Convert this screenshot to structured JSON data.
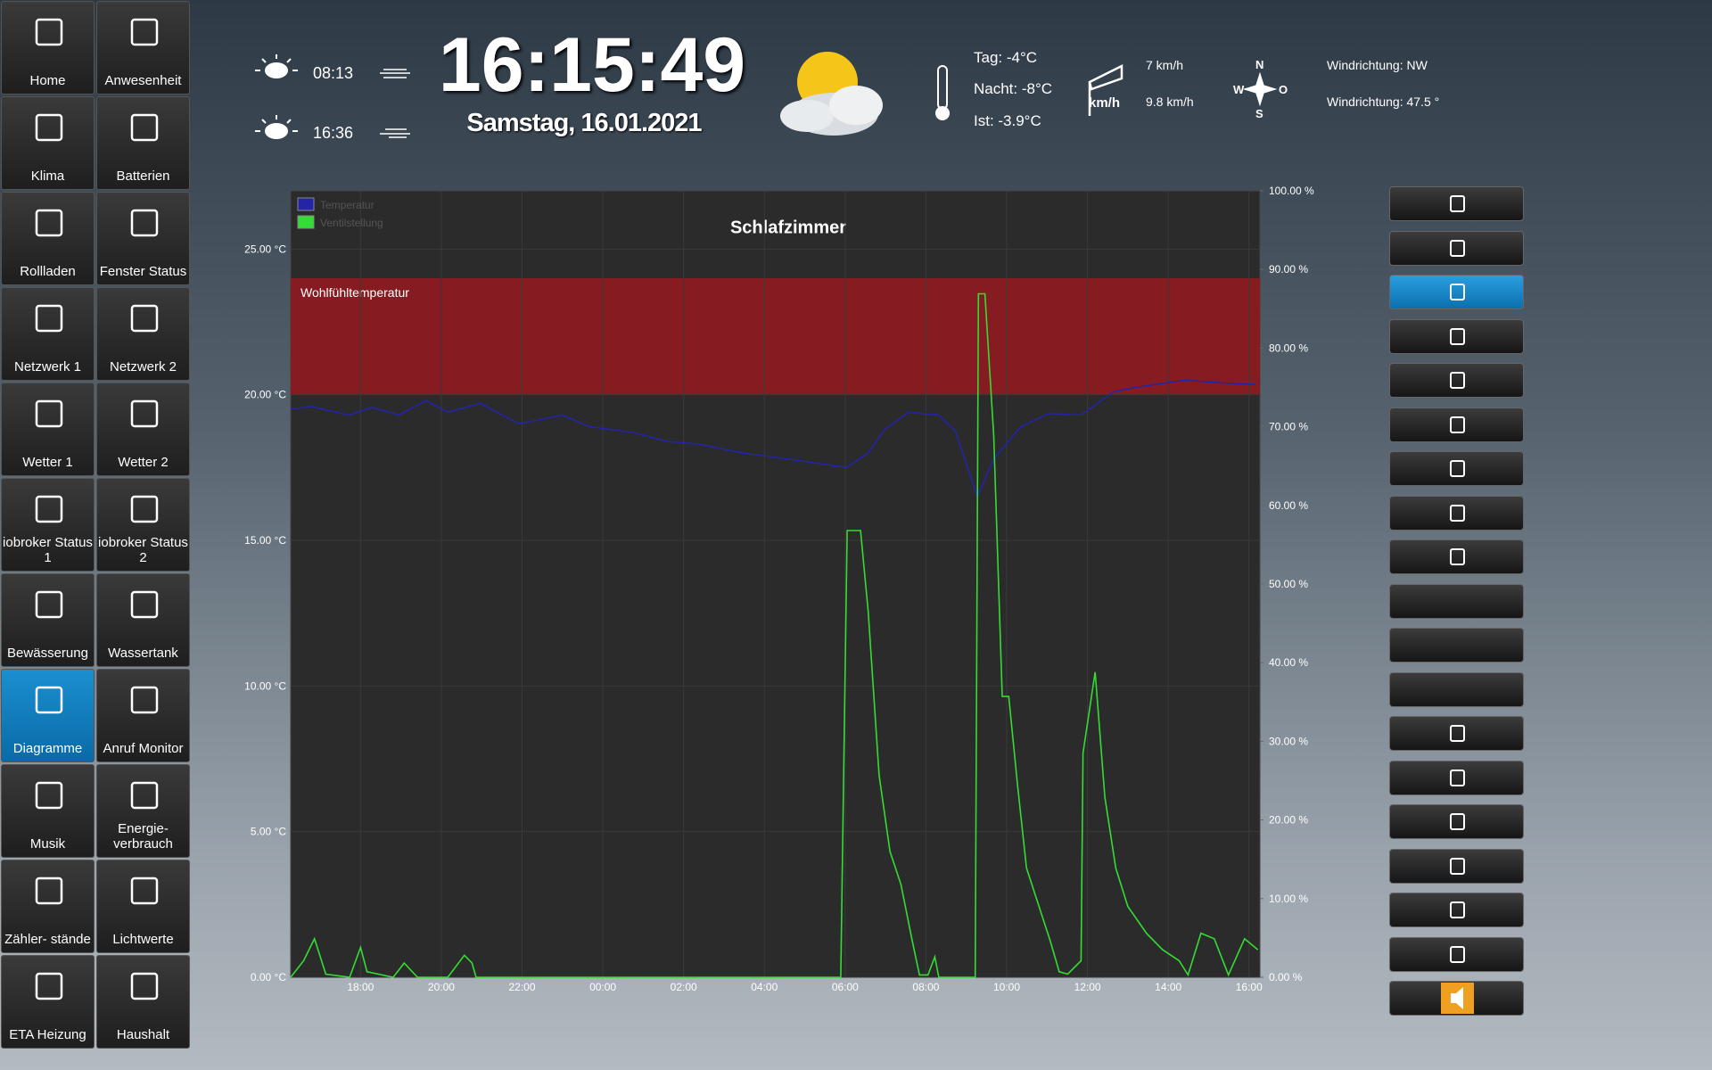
{
  "sidebar": {
    "tiles": [
      {
        "label": "Home"
      },
      {
        "label": "Anwesenheit"
      },
      {
        "label": "Klima"
      },
      {
        "label": "Batterien"
      },
      {
        "label": "Rollladen"
      },
      {
        "label": "Fenster Status"
      },
      {
        "label": "Netzwerk 1"
      },
      {
        "label": "Netzwerk 2"
      },
      {
        "label": "Wetter 1"
      },
      {
        "label": "Wetter 2"
      },
      {
        "label": "iobroker Status 1"
      },
      {
        "label": "iobroker Status 2"
      },
      {
        "label": "Bewässerung"
      },
      {
        "label": "Wassertank"
      },
      {
        "label": "Diagramme",
        "active": true
      },
      {
        "label": "Anruf Monitor"
      },
      {
        "label": "Musik"
      },
      {
        "label": "Energie- verbrauch"
      },
      {
        "label": "Zähler- stände"
      },
      {
        "label": "Lichtwerte"
      },
      {
        "label": "ETA Heizung"
      },
      {
        "label": "Haushalt"
      }
    ]
  },
  "header": {
    "sunrise": "08:13",
    "sunset": "16:36",
    "clock": "16:15:49",
    "date": "Samstag, 16.01.2021",
    "temp_day": "Tag: -4°C",
    "temp_night": "Nacht: -8°C",
    "temp_now": "Ist: -3.9°C",
    "wind_unit": "km/h",
    "wind_speed": "7 km/h",
    "wind_gust": "9.8 km/h",
    "compass": {
      "n": "N",
      "w": "W",
      "o": "O",
      "s": "S"
    },
    "wind_dir": "Windrichtung: NW",
    "wind_deg": "Windrichtung: 47.5 °"
  },
  "chart_data": {
    "type": "line",
    "title": "Schlafzimmer",
    "legend": "top-left",
    "grid": true,
    "xlim": [
      16.27,
      40.27
    ],
    "xticks": [
      {
        "value": 18,
        "label": "18:00"
      },
      {
        "value": 20,
        "label": "20:00"
      },
      {
        "value": 22,
        "label": "22:00"
      },
      {
        "value": 24,
        "label": "00:00"
      },
      {
        "value": 26,
        "label": "02:00"
      },
      {
        "value": 28,
        "label": "04:00"
      },
      {
        "value": 30,
        "label": "06:00"
      },
      {
        "value": 32,
        "label": "08:00"
      },
      {
        "value": 34,
        "label": "10:00"
      },
      {
        "value": 36,
        "label": "12:00"
      },
      {
        "value": 38,
        "label": "14:00"
      },
      {
        "value": 40,
        "label": "16:00"
      }
    ],
    "ylim": [
      0,
      27
    ],
    "yticks": [
      {
        "value": 0,
        "label": "0.00 °C"
      },
      {
        "value": 5,
        "label": "5.00 °C"
      },
      {
        "value": 10,
        "label": "10.00 °C"
      },
      {
        "value": 15,
        "label": "15.00 °C"
      },
      {
        "value": 20,
        "label": "20.00 °C"
      },
      {
        "value": 25,
        "label": "25.00 °C"
      }
    ],
    "y2lim": [
      0,
      100
    ],
    "y2ticks": [
      {
        "value": 0,
        "label": "0.00 %"
      },
      {
        "value": 10,
        "label": "10.00 %"
      },
      {
        "value": 20,
        "label": "20.00 %"
      },
      {
        "value": 30,
        "label": "30.00 %"
      },
      {
        "value": 40,
        "label": "40.00 %"
      },
      {
        "value": 50,
        "label": "50.00 %"
      },
      {
        "value": 60,
        "label": "60.00 %"
      },
      {
        "value": 70,
        "label": "70.00 %"
      },
      {
        "value": 80,
        "label": "80.00 %"
      },
      {
        "value": 90,
        "label": "90.00 %"
      },
      {
        "value": 100,
        "label": "100.00 %"
      }
    ],
    "plot_band": {
      "label": "Wohlfühltemperatur",
      "from": 20,
      "to": 24,
      "color": "#861c21"
    },
    "series": [
      {
        "name": "Temperatur",
        "color": "#2424a8",
        "x": [
          16.27,
          16.78,
          17.19,
          17.73,
          18.27,
          18.95,
          19.62,
          20.16,
          20.97,
          21.92,
          23.0,
          23.68,
          24.76,
          25.57,
          26.38,
          27.46,
          28.54,
          30.03,
          30.57,
          30.97,
          31.57,
          32.32,
          32.73,
          33.27,
          33.68,
          34.35,
          35.03,
          35.84,
          36.65,
          37.19,
          38.41,
          39.35,
          40.16
        ],
        "values": [
          19.5,
          19.6,
          19.46,
          19.3,
          19.57,
          19.3,
          19.8,
          19.4,
          19.7,
          19.0,
          19.3,
          18.9,
          18.7,
          18.4,
          18.3,
          18.0,
          17.8,
          17.5,
          18.0,
          18.8,
          19.4,
          19.3,
          18.75,
          16.5,
          17.8,
          18.9,
          19.35,
          19.3,
          20.1,
          20.25,
          20.5,
          20.4,
          20.35
        ]
      },
      {
        "name": "Ventilstellung",
        "color": "#33dd33",
        "axis": "y2",
        "x": [
          16.27,
          16.59,
          16.86,
          17.14,
          17.73,
          18.0,
          18.16,
          18.81,
          19.08,
          19.41,
          20.16,
          20.57,
          20.76,
          20.86,
          29.89,
          30.05,
          30.38,
          30.57,
          30.84,
          31.11,
          31.38,
          31.65,
          31.84,
          32.05,
          32.22,
          32.32,
          33.22,
          33.3,
          33.46,
          33.68,
          33.89,
          34.05,
          34.27,
          34.49,
          34.89,
          35.08,
          35.3,
          35.51,
          35.84,
          35.89,
          36.19,
          36.43,
          36.7,
          37.0,
          37.46,
          37.86,
          38.27,
          38.49,
          38.81,
          39.14,
          39.49,
          39.89,
          40.22
        ],
        "values": [
          0,
          2.1,
          4.9,
          0.4,
          0,
          3.8,
          0.7,
          0,
          1.8,
          0,
          0,
          2.8,
          1.8,
          0,
          0,
          56.8,
          56.8,
          46.5,
          25.7,
          16,
          11.8,
          4.9,
          0.3,
          0.3,
          2.6,
          0,
          0,
          86.9,
          86.9,
          68.8,
          35.7,
          35.7,
          24.3,
          13.9,
          7.6,
          4.6,
          0.7,
          0.4,
          2.1,
          28.5,
          38.8,
          22.9,
          13.9,
          9,
          5.6,
          3.5,
          2.1,
          0.3,
          5.6,
          4.9,
          0.3,
          4.9,
          3.5
        ]
      }
    ]
  }
}
